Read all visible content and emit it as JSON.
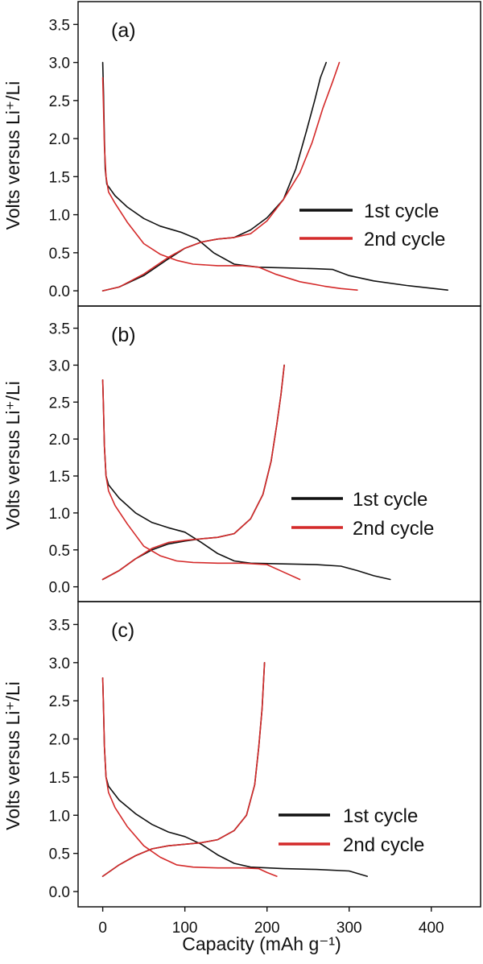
{
  "colors": {
    "black": "#111111",
    "red": "#d42a2a",
    "axis": "#111111"
  },
  "chart_data": [
    {
      "type": "line",
      "panel_label": "(a)",
      "ylabel": "Volts versus Li⁺/Li",
      "xlim": [
        -30,
        460
      ],
      "ylim": [
        -0.2,
        3.8
      ],
      "yticks": [
        "0.0",
        "0.5",
        "1.0",
        "1.5",
        "2.0",
        "2.5",
        "3.0",
        "3.5"
      ],
      "legend": {
        "placement": "right",
        "entries": [
          "1st cycle",
          "2nd cycle"
        ]
      },
      "series": [
        {
          "name": "1st cycle",
          "color": "black",
          "discharge": [
            [
              0,
              3.0
            ],
            [
              1,
              2.6
            ],
            [
              2,
              2.0
            ],
            [
              3,
              1.6
            ],
            [
              5,
              1.4
            ],
            [
              15,
              1.25
            ],
            [
              30,
              1.1
            ],
            [
              50,
              0.95
            ],
            [
              70,
              0.85
            ],
            [
              95,
              0.77
            ],
            [
              115,
              0.68
            ],
            [
              135,
              0.5
            ],
            [
              160,
              0.35
            ],
            [
              190,
              0.31
            ],
            [
              230,
              0.3
            ],
            [
              260,
              0.29
            ],
            [
              280,
              0.28
            ],
            [
              300,
              0.2
            ],
            [
              330,
              0.13
            ],
            [
              370,
              0.07
            ],
            [
              420,
              0.01
            ]
          ],
          "charge": [
            [
              0,
              0
            ],
            [
              20,
              0.05
            ],
            [
              50,
              0.2
            ],
            [
              80,
              0.42
            ],
            [
              100,
              0.56
            ],
            [
              120,
              0.64
            ],
            [
              140,
              0.68
            ],
            [
              160,
              0.7
            ],
            [
              180,
              0.8
            ],
            [
              200,
              0.96
            ],
            [
              220,
              1.2
            ],
            [
              235,
              1.6
            ],
            [
              248,
              2.1
            ],
            [
              258,
              2.5
            ],
            [
              265,
              2.8
            ],
            [
              272,
              3.0
            ]
          ]
        },
        {
          "name": "2nd cycle",
          "color": "red",
          "discharge": [
            [
              0,
              2.8
            ],
            [
              1,
              2.4
            ],
            [
              2,
              1.9
            ],
            [
              4,
              1.5
            ],
            [
              7,
              1.3
            ],
            [
              15,
              1.15
            ],
            [
              30,
              0.9
            ],
            [
              50,
              0.62
            ],
            [
              70,
              0.48
            ],
            [
              90,
              0.4
            ],
            [
              110,
              0.35
            ],
            [
              140,
              0.33
            ],
            [
              170,
              0.33
            ],
            [
              190,
              0.31
            ],
            [
              210,
              0.22
            ],
            [
              240,
              0.12
            ],
            [
              270,
              0.06
            ],
            [
              290,
              0.03
            ],
            [
              310,
              0.01
            ]
          ],
          "charge": [
            [
              0,
              0
            ],
            [
              20,
              0.05
            ],
            [
              50,
              0.22
            ],
            [
              80,
              0.44
            ],
            [
              100,
              0.56
            ],
            [
              120,
              0.64
            ],
            [
              140,
              0.68
            ],
            [
              160,
              0.7
            ],
            [
              180,
              0.75
            ],
            [
              200,
              0.92
            ],
            [
              220,
              1.2
            ],
            [
              240,
              1.55
            ],
            [
              255,
              1.95
            ],
            [
              268,
              2.4
            ],
            [
              280,
              2.75
            ],
            [
              288,
              3.0
            ]
          ]
        }
      ]
    },
    {
      "type": "line",
      "panel_label": "(b)",
      "ylabel": "Volts versus Li⁺/Li",
      "xlim": [
        -30,
        460
      ],
      "ylim": [
        -0.2,
        3.8
      ],
      "yticks": [
        "0.0",
        "0.5",
        "1.0",
        "1.5",
        "2.0",
        "2.5",
        "3.0",
        "3.5"
      ],
      "legend": {
        "placement": "right",
        "entries": [
          "1st cycle",
          "2nd cycle"
        ]
      },
      "series": [
        {
          "name": "1st cycle",
          "color": "black",
          "discharge": [
            [
              0,
              2.8
            ],
            [
              1,
              2.4
            ],
            [
              2,
              1.9
            ],
            [
              4,
              1.5
            ],
            [
              7,
              1.38
            ],
            [
              20,
              1.2
            ],
            [
              40,
              1.0
            ],
            [
              60,
              0.87
            ],
            [
              80,
              0.8
            ],
            [
              100,
              0.74
            ],
            [
              120,
              0.6
            ],
            [
              140,
              0.45
            ],
            [
              160,
              0.35
            ],
            [
              180,
              0.32
            ],
            [
              220,
              0.31
            ],
            [
              260,
              0.3
            ],
            [
              290,
              0.28
            ],
            [
              310,
              0.22
            ],
            [
              330,
              0.15
            ],
            [
              350,
              0.1
            ]
          ],
          "charge": [
            [
              0,
              0.1
            ],
            [
              20,
              0.22
            ],
            [
              40,
              0.38
            ],
            [
              60,
              0.5
            ],
            [
              80,
              0.58
            ],
            [
              100,
              0.62
            ],
            [
              120,
              0.65
            ],
            [
              140,
              0.67
            ],
            [
              160,
              0.72
            ],
            [
              180,
              0.92
            ],
            [
              195,
              1.25
            ],
            [
              205,
              1.7
            ],
            [
              212,
              2.2
            ],
            [
              217,
              2.6
            ],
            [
              221,
              3.0
            ]
          ]
        },
        {
          "name": "2nd cycle",
          "color": "red",
          "discharge": [
            [
              0,
              2.8
            ],
            [
              1,
              2.4
            ],
            [
              2,
              1.9
            ],
            [
              4,
              1.5
            ],
            [
              7,
              1.3
            ],
            [
              15,
              1.1
            ],
            [
              30,
              0.85
            ],
            [
              50,
              0.55
            ],
            [
              70,
              0.42
            ],
            [
              90,
              0.35
            ],
            [
              110,
              0.33
            ],
            [
              140,
              0.32
            ],
            [
              170,
              0.32
            ],
            [
              200,
              0.3
            ],
            [
              220,
              0.2
            ],
            [
              240,
              0.1
            ]
          ],
          "charge": [
            [
              0,
              0.1
            ],
            [
              20,
              0.22
            ],
            [
              40,
              0.38
            ],
            [
              60,
              0.52
            ],
            [
              80,
              0.6
            ],
            [
              100,
              0.63
            ],
            [
              120,
              0.65
            ],
            [
              140,
              0.67
            ],
            [
              160,
              0.72
            ],
            [
              180,
              0.92
            ],
            [
              195,
              1.25
            ],
            [
              205,
              1.7
            ],
            [
              212,
              2.2
            ],
            [
              217,
              2.6
            ],
            [
              221,
              3.0
            ]
          ]
        }
      ]
    },
    {
      "type": "line",
      "panel_label": "(c)",
      "ylabel": "Volts versus Li⁺/Li",
      "xlim": [
        -30,
        460
      ],
      "ylim": [
        -0.2,
        3.8
      ],
      "yticks": [
        "0.0",
        "0.5",
        "1.0",
        "1.5",
        "2.0",
        "2.5",
        "3.0",
        "3.5"
      ],
      "xticks": [
        "0",
        "100",
        "200",
        "300",
        "400"
      ],
      "xlabel": "Capacity (mAh g⁻¹)",
      "legend": {
        "placement": "bottom-right",
        "entries": [
          "1st cycle",
          "2nd cycle"
        ]
      },
      "series": [
        {
          "name": "1st cycle",
          "color": "black",
          "discharge": [
            [
              0,
              2.8
            ],
            [
              1,
              2.4
            ],
            [
              2,
              1.9
            ],
            [
              4,
              1.5
            ],
            [
              7,
              1.38
            ],
            [
              20,
              1.2
            ],
            [
              40,
              1.02
            ],
            [
              60,
              0.88
            ],
            [
              80,
              0.78
            ],
            [
              100,
              0.72
            ],
            [
              120,
              0.62
            ],
            [
              140,
              0.48
            ],
            [
              160,
              0.37
            ],
            [
              180,
              0.32
            ],
            [
              220,
              0.3
            ],
            [
              260,
              0.29
            ],
            [
              300,
              0.27
            ],
            [
              322,
              0.2
            ]
          ],
          "charge": [
            [
              0,
              0.2
            ],
            [
              20,
              0.35
            ],
            [
              40,
              0.47
            ],
            [
              60,
              0.56
            ],
            [
              80,
              0.6
            ],
            [
              100,
              0.62
            ],
            [
              120,
              0.64
            ],
            [
              140,
              0.68
            ],
            [
              160,
              0.8
            ],
            [
              175,
              1.0
            ],
            [
              185,
              1.4
            ],
            [
              190,
              1.9
            ],
            [
              194,
              2.4
            ],
            [
              197,
              3.0
            ]
          ]
        },
        {
          "name": "2nd cycle",
          "color": "red",
          "discharge": [
            [
              0,
              2.8
            ],
            [
              1,
              2.4
            ],
            [
              2,
              1.9
            ],
            [
              4,
              1.5
            ],
            [
              7,
              1.3
            ],
            [
              15,
              1.1
            ],
            [
              30,
              0.85
            ],
            [
              50,
              0.6
            ],
            [
              70,
              0.45
            ],
            [
              90,
              0.35
            ],
            [
              110,
              0.32
            ],
            [
              140,
              0.31
            ],
            [
              170,
              0.31
            ],
            [
              190,
              0.3
            ],
            [
              200,
              0.25
            ],
            [
              212,
              0.2
            ]
          ],
          "charge": [
            [
              0,
              0.2
            ],
            [
              20,
              0.35
            ],
            [
              40,
              0.47
            ],
            [
              60,
              0.56
            ],
            [
              80,
              0.6
            ],
            [
              100,
              0.62
            ],
            [
              120,
              0.64
            ],
            [
              140,
              0.68
            ],
            [
              160,
              0.8
            ],
            [
              175,
              1.0
            ],
            [
              185,
              1.4
            ],
            [
              190,
              1.9
            ],
            [
              194,
              2.4
            ],
            [
              197,
              3.0
            ]
          ]
        }
      ]
    }
  ]
}
